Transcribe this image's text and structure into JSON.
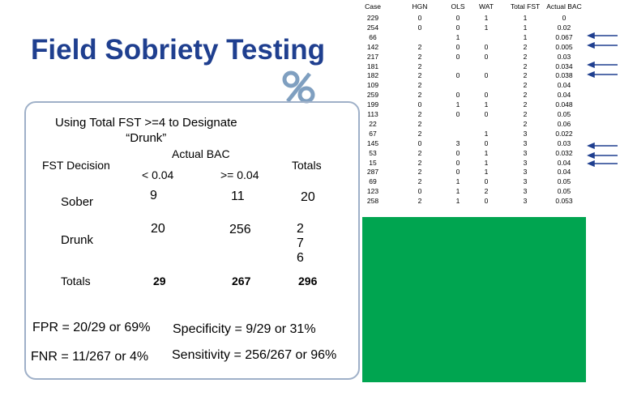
{
  "header": {
    "title": "Field Sobriety Testing"
  },
  "panel": {
    "subtitle_line1": "Using Total FST >=4 to Designate",
    "subtitle_line2": "“Drunk”",
    "fst_decision": "FST Decision",
    "actual_bac": "Actual BAC",
    "totals_col": "Totals",
    "lt": "<  0.04",
    "ge": ">= 0.04",
    "sober": "Sober",
    "drunk": "Drunk",
    "totals_row": "Totals",
    "m00": "9",
    "m01": "11",
    "m02": "20",
    "m10": "20",
    "m11": "256",
    "m12": "276",
    "m20": "29",
    "m21": "267",
    "m22": "296",
    "fpr": "FPR =  20/29 or 69%",
    "specificity": "Specificity = 9/29 or 31%",
    "fnr": "FNR = 11/267 or 4%",
    "sensitivity": "Sensitivity = 256/267 or 96%"
  },
  "table": {
    "headers": [
      "Case",
      "HGN",
      "OLS",
      "WAT",
      "Total FST",
      "Actual BAC"
    ],
    "rows": [
      [
        "229",
        "0",
        "0",
        "1",
        "1",
        "0"
      ],
      [
        "254",
        "0",
        "0",
        "1",
        "1",
        "0.02"
      ],
      [
        "66",
        null,
        "1",
        null,
        "1",
        "0.067"
      ],
      [
        "142",
        "2",
        "0",
        "0",
        "2",
        "0.005"
      ],
      [
        "217",
        "2",
        "0",
        "0",
        "2",
        "0.03"
      ],
      [
        "181",
        "2",
        null,
        null,
        "2",
        "0.034"
      ],
      [
        "182",
        "2",
        "0",
        "0",
        "2",
        "0.038"
      ],
      [
        "109",
        "2",
        null,
        null,
        "2",
        "0.04"
      ],
      [
        "259",
        "2",
        "0",
        "0",
        "2",
        "0.04"
      ],
      [
        "199",
        "0",
        "1",
        "1",
        "2",
        "0.048"
      ],
      [
        "113",
        "2",
        "0",
        "0",
        "2",
        "0.05"
      ],
      [
        "22",
        "2",
        null,
        null,
        "2",
        "0.06"
      ],
      [
        "67",
        "2",
        null,
        "1",
        "3",
        "0.022"
      ],
      [
        "145",
        "0",
        "3",
        "0",
        "3",
        "0.03"
      ],
      [
        "53",
        "2",
        "0",
        "1",
        "3",
        "0.032"
      ],
      [
        "15",
        "2",
        "0",
        "1",
        "3",
        "0.04"
      ],
      [
        "287",
        "2",
        "0",
        "1",
        "3",
        "0.04"
      ],
      [
        "69",
        "2",
        "1",
        "0",
        "3",
        "0.05"
      ],
      [
        "123",
        "0",
        "1",
        "2",
        "3",
        "0.05"
      ],
      [
        "258",
        "2",
        "1",
        "0",
        "3",
        "0.053"
      ]
    ]
  }
}
